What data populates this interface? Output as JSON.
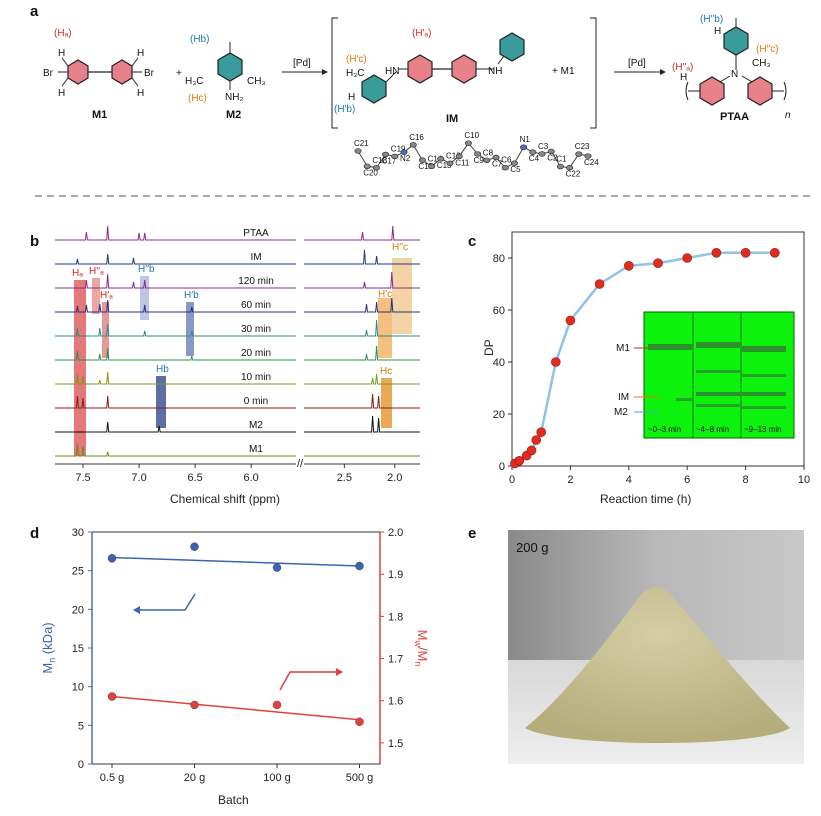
{
  "panels": {
    "a": {
      "letter": "a",
      "m1": {
        "name": "M1",
        "br_left": "Br",
        "br_right": "Br",
        "h": "H",
        "ha_label": "(Hₐ)"
      },
      "m2": {
        "name": "M2",
        "hb_label": "(Hb)",
        "hc_label": "(Hc)",
        "ch3": "CH₃",
        "h3c": "H₃C",
        "nh2": "NH₂"
      },
      "plus": "+",
      "pd1": "[Pd]",
      "pd2": "[Pd]",
      "im": {
        "name": "IM",
        "ha_label": "(H′ₐ)",
        "hc_label": "(H′c)",
        "hb_label": "(H′b)",
        "h3c": "H₃C",
        "hn": "HN",
        "nh": "NH",
        "h": "H"
      },
      "plus_m1": "+ M1",
      "ptaa": {
        "name": "PTAA",
        "hb_label": "(H′′b)",
        "hc_label": "(H′′c)",
        "ha_label": "(H′′ₐ)",
        "ch3": "CH₃",
        "n": "N",
        "h": "H",
        "sub_n": "n"
      },
      "crystal_labels": [
        "C21",
        "C20",
        "C18",
        "C17",
        "C19",
        "N2",
        "C16",
        "C15",
        "C14",
        "C13",
        "C12",
        "C11",
        "C10",
        "C9",
        "C8",
        "C7",
        "C6",
        "C5",
        "N1",
        "C4",
        "C3",
        "C2",
        "C1",
        "C22",
        "C23",
        "C24"
      ]
    },
    "b": {
      "letter": "b",
      "spectra": [
        "PTAA",
        "IM",
        "120 min",
        "60 min",
        "30 min",
        "20 min",
        "10 min",
        "0 min",
        "M2",
        "M1"
      ],
      "colors": [
        "#8b2a8b",
        "#1f3a7a",
        "#8b2a8b",
        "#2c2c7a",
        "#2a8a8a",
        "#2f8f4f",
        "#7a9a1a",
        "#8b1a1a",
        "#111111",
        "#6a8a1a"
      ],
      "peak_labels": {
        "ha": "Hₐ",
        "ha2": "H′′ₐ",
        "ha1": "H′ₐ",
        "hb2": "H′′b",
        "hb1": "H′b",
        "hb": "Hb",
        "hc": "Hc",
        "hc1": "H′c",
        "hc2": "H′′c"
      },
      "x_ticks_left": [
        "7.5",
        "7.0",
        "6.5",
        "6.0"
      ],
      "x_ticks_right": [
        "2.5",
        "2.0"
      ],
      "xlabel": "Chemical shift (ppm)"
    },
    "c": {
      "letter": "c",
      "ylabel": "DP",
      "xlabel": "Reaction time (h)",
      "inset": {
        "m1": "M1",
        "im": "IM",
        "m2": "M2",
        "lanes": [
          "~0–3 min",
          "~4–8 min",
          "~9–13 min"
        ]
      }
    },
    "d": {
      "letter": "d",
      "ylabel_left": "Mn (kDa)",
      "ylabel_left_main": "M",
      "ylabel_left_sub": "n",
      "ylabel_left_unit": " (kDa)",
      "ylabel_right_m1": "M",
      "ylabel_right_w": "w",
      "ylabel_right_slash": "/M",
      "ylabel_right_n": "n",
      "xlabel": "Batch"
    },
    "e": {
      "letter": "e",
      "label": "200 g"
    }
  },
  "chart_data": [
    {
      "panel": "c",
      "type": "scatter",
      "title": "",
      "xlabel": "Reaction time (h)",
      "ylabel": "DP",
      "xlim": [
        0,
        10
      ],
      "ylim": [
        0,
        90
      ],
      "xticks": [
        0,
        2,
        4,
        6,
        8,
        10
      ],
      "yticks": [
        0,
        20,
        40,
        60,
        80
      ],
      "series": [
        {
          "name": "DP",
          "x": [
            0.1,
            0.25,
            0.5,
            0.67,
            0.83,
            1.0,
            1.5,
            2.0,
            3.0,
            4.0,
            5.0,
            6.0,
            7.0,
            8.0,
            9.0
          ],
          "y": [
            1,
            2,
            4,
            6,
            10,
            13,
            40,
            56,
            70,
            77,
            78,
            80,
            82,
            82,
            82
          ]
        }
      ]
    },
    {
      "panel": "d",
      "type": "scatter",
      "xlabel": "Batch",
      "categories": [
        "0.5 g",
        "20 g",
        "100 g",
        "500 g"
      ],
      "ylabel_left": "Mn (kDa)",
      "ylim_left": [
        0,
        30
      ],
      "yticks_left": [
        0,
        5,
        10,
        15,
        20,
        25,
        30
      ],
      "ylabel_right": "Mw/Mn",
      "ylim_right": [
        1.45,
        2.0
      ],
      "yticks_right": [
        1.5,
        1.6,
        1.7,
        1.8,
        1.9,
        2.0
      ],
      "series": [
        {
          "name": "Mn",
          "axis": "left",
          "color": "#3a64b0",
          "values": [
            26.6,
            28.1,
            25.4,
            25.6
          ],
          "fit": [
            26.7,
            25.6
          ]
        },
        {
          "name": "Mw/Mn",
          "axis": "right",
          "color": "#e0413a",
          "values": [
            1.61,
            1.59,
            1.59,
            1.55
          ],
          "fit": [
            1.61,
            1.555
          ]
        }
      ]
    }
  ]
}
